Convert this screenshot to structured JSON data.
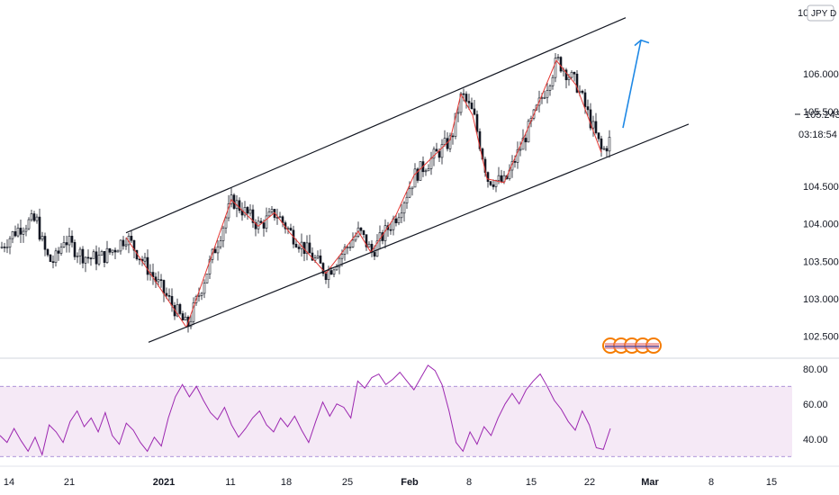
{
  "symbol_badge": "JPY D",
  "axis_partial_top": "10",
  "chart_data": [
    {
      "type": "candlestick",
      "title": "",
      "y_ticks": [
        "106.000",
        "105.500",
        "104.500",
        "104.000",
        "103.500",
        "103.000",
        "102.500"
      ],
      "y_range": [
        102.28,
        106.95
      ],
      "last_price_label": "105.243",
      "countdown_label": "03:18:54",
      "x_ticks": [
        "14",
        "21",
        "2021",
        "11",
        "18",
        "25",
        "Feb",
        "8",
        "15",
        "22",
        "Mar",
        "8",
        "15"
      ],
      "swing_path": [
        103.82,
        102.62,
        104.32,
        103.97,
        104.15,
        103.88,
        103.34,
        103.9,
        103.62,
        104.12,
        104.65,
        105.12,
        105.73,
        105.45,
        104.6,
        104.55,
        105.4,
        106.18,
        105.85,
        104.95
      ],
      "channel": {
        "upper": [
          [
            103.88,
            106.75
          ]
        ],
        "lower": [
          [
            102.42,
            105.33
          ]
        ]
      },
      "projection_arrow": {
        "from": 105.28,
        "to": 106.45
      },
      "grid": false,
      "legend": "none"
    },
    {
      "type": "line",
      "title": "",
      "y_ticks": [
        "80.00",
        "60.00",
        "40.00"
      ],
      "y_range": [
        25,
        85
      ],
      "bands": [
        70,
        30
      ],
      "series": [
        {
          "name": "",
          "values": [
            42,
            38,
            46,
            39,
            33,
            41,
            31,
            48,
            44,
            38,
            50,
            56,
            47,
            52,
            44,
            55,
            42,
            37,
            49,
            45,
            38,
            33,
            41,
            36,
            52,
            64,
            71,
            64,
            70,
            62,
            55,
            51,
            58,
            48,
            41,
            46,
            52,
            56,
            48,
            44,
            52,
            47,
            53,
            45,
            38,
            50,
            61,
            53,
            60,
            58,
            52,
            73,
            69,
            75,
            77,
            71,
            74,
            78,
            73,
            68,
            75,
            82,
            79,
            71,
            56,
            38,
            33,
            44,
            37,
            47,
            42,
            52,
            60,
            66,
            60,
            68,
            73,
            77,
            70,
            62,
            57,
            50,
            45,
            56,
            48,
            35,
            34,
            46
          ]
        }
      ]
    }
  ]
}
